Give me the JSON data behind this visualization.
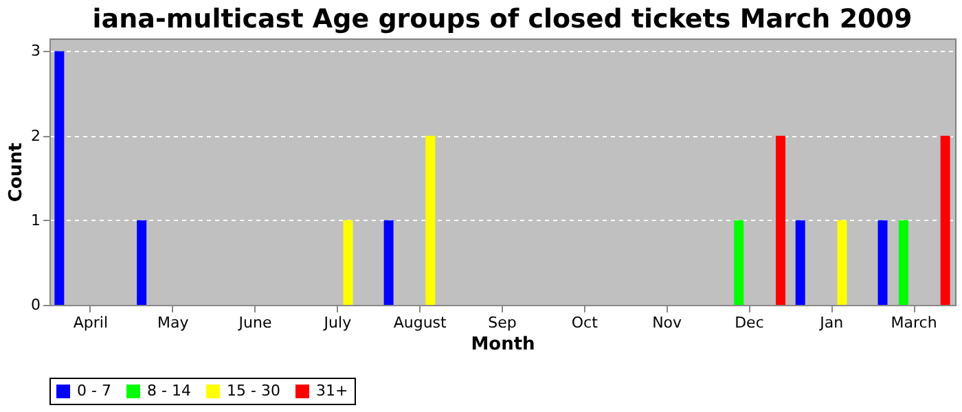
{
  "chart_data": {
    "type": "bar",
    "title": "iana-multicast Age groups of closed tickets March 2009",
    "xlabel": "Month",
    "ylabel": "Count",
    "categories": [
      "April",
      "May",
      "June",
      "July",
      "August",
      "Sep",
      "Oct",
      "Nov",
      "Dec",
      "Jan",
      "March"
    ],
    "series": [
      {
        "name": "0 - 7",
        "color": "#0000ff",
        "values": [
          3,
          1,
          0,
          0,
          1,
          0,
          0,
          0,
          0,
          1,
          1
        ]
      },
      {
        "name": "8 - 14",
        "color": "#00ff00",
        "values": [
          0,
          0,
          0,
          0,
          0,
          0,
          0,
          0,
          1,
          0,
          1
        ]
      },
      {
        "name": "15 - 30",
        "color": "#ffff00",
        "values": [
          0,
          0,
          0,
          1,
          2,
          0,
          0,
          0,
          0,
          1,
          0
        ]
      },
      {
        "name": "31+",
        "color": "#ff0000",
        "values": [
          0,
          0,
          0,
          0,
          0,
          0,
          0,
          0,
          2,
          0,
          2
        ]
      }
    ],
    "ylim": [
      0,
      3.15
    ],
    "yticks": [
      0,
      1,
      2,
      3
    ],
    "grid": "y",
    "legend": "bottom"
  }
}
